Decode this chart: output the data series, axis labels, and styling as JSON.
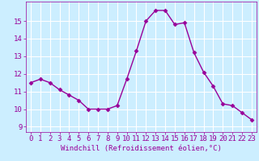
{
  "x": [
    0,
    1,
    2,
    3,
    4,
    5,
    6,
    7,
    8,
    9,
    10,
    11,
    12,
    13,
    14,
    15,
    16,
    17,
    18,
    19,
    20,
    21,
    22,
    23
  ],
  "y": [
    11.5,
    11.7,
    11.5,
    11.1,
    10.8,
    10.5,
    10.0,
    10.0,
    10.0,
    10.2,
    11.7,
    13.3,
    15.0,
    15.6,
    15.6,
    14.8,
    14.9,
    13.2,
    12.1,
    11.3,
    10.3,
    10.2,
    9.8,
    9.4
  ],
  "line_color": "#990099",
  "marker": "D",
  "markersize": 2.5,
  "linewidth": 1.0,
  "xlabel": "Windchill (Refroidissement éolien,°C)",
  "xlabel_fontsize": 6.5,
  "xticks": [
    0,
    1,
    2,
    3,
    4,
    5,
    6,
    7,
    8,
    9,
    10,
    11,
    12,
    13,
    14,
    15,
    16,
    17,
    18,
    19,
    20,
    21,
    22,
    23
  ],
  "yticks": [
    9,
    10,
    11,
    12,
    13,
    14,
    15
  ],
  "ylim": [
    8.7,
    16.1
  ],
  "xlim": [
    -0.5,
    23.5
  ],
  "bg_color": "#cceeff",
  "grid_color": "#ffffff",
  "tick_fontsize": 6.5,
  "tick_color": "#990099",
  "label_color": "#990099",
  "spine_color": "#990099"
}
